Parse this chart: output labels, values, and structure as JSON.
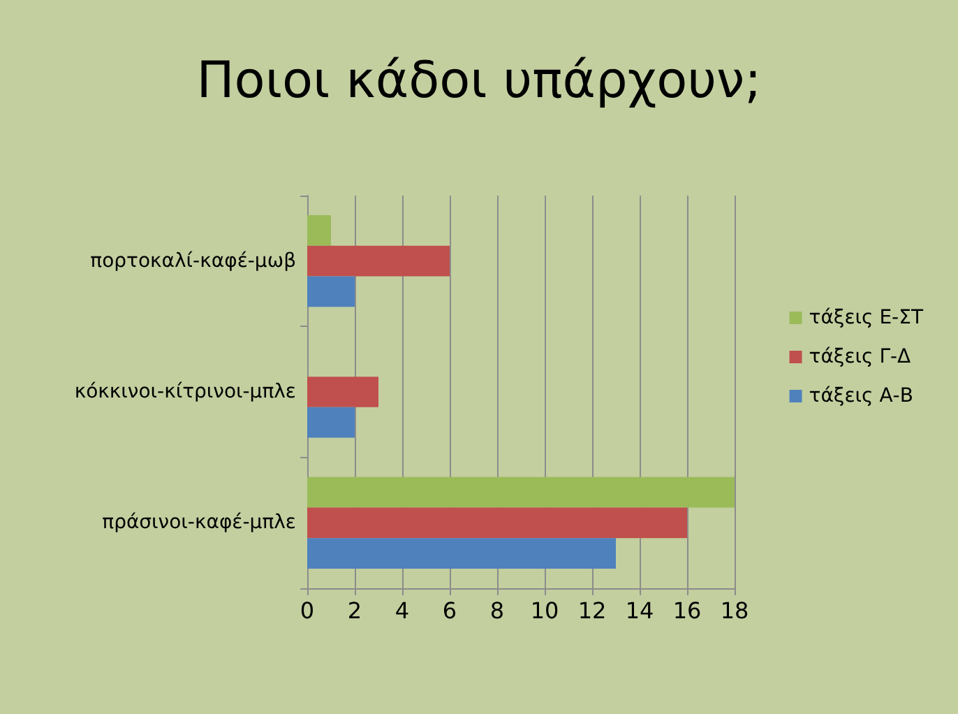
{
  "chart_data": {
    "type": "bar",
    "orientation": "horizontal",
    "title": "Ποιοι κάδοι υπάρχουν;",
    "categories": [
      "πορτοκαλί-καφέ-μωβ",
      "κόκκινοι-κίτρινοι-μπλε",
      "πράσινοι-καφέ-μπλε"
    ],
    "series": [
      {
        "name": "τάξεις Ε-ΣΤ",
        "color": "#9bbb59",
        "values": [
          1,
          0,
          18
        ]
      },
      {
        "name": "τάξεις Γ-Δ",
        "color": "#c0504d",
        "values": [
          6,
          3,
          16
        ]
      },
      {
        "name": "τάξεις Α-Β",
        "color": "#4f81bd",
        "values": [
          2,
          2,
          13
        ]
      }
    ],
    "xlim": [
      0,
      18
    ],
    "xticks": [
      0,
      2,
      4,
      6,
      8,
      10,
      12,
      14,
      16,
      18
    ],
    "grid": "x",
    "legend": "right"
  }
}
